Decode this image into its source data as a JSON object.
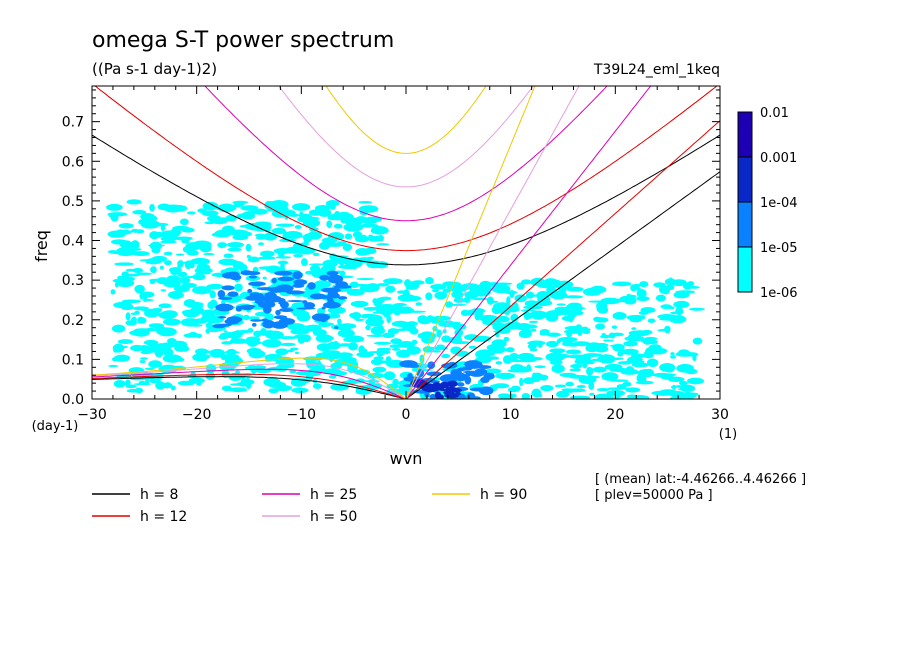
{
  "chart_data": {
    "type": "heatmap",
    "title": "omega S-T power spectrum",
    "subtitle": "((Pa s-1 day-1)2)",
    "run_label": "T39L24_eml_1keq",
    "xlabel": "wvn",
    "ylabel": "freq",
    "x_unit": "(1)",
    "y_unit": "(day-1)",
    "xlim": [
      -30,
      30
    ],
    "ylim": [
      0,
      0.79
    ],
    "x_ticks": [
      -30,
      -20,
      -10,
      0,
      10,
      20,
      30
    ],
    "y_ticks": [
      0.0,
      0.1,
      0.2,
      0.3,
      0.4,
      0.5,
      0.6,
      0.7
    ],
    "colorbar": {
      "levels": [
        "1e-06",
        "1e-05",
        "1e-04",
        "0.001",
        "0.01"
      ],
      "colors": [
        "#00ffff",
        "#0a82ff",
        "#0a28c8",
        "#1e00b4"
      ]
    },
    "field_regions": [
      {
        "level": 1,
        "x": [
          -28,
          -2
        ],
        "y": [
          0.02,
          0.5
        ]
      },
      {
        "level": 1,
        "x": [
          -2,
          28
        ],
        "y": [
          0.0,
          0.3
        ]
      },
      {
        "level": 2,
        "x": [
          -18,
          -6
        ],
        "y": [
          0.18,
          0.32
        ]
      },
      {
        "level": 2,
        "x": [
          0,
          8
        ],
        "y": [
          0.0,
          0.09
        ]
      },
      {
        "level": 3,
        "x": [
          1,
          5
        ],
        "y": [
          0.0,
          0.04
        ]
      }
    ],
    "series": [
      {
        "name": "h = 8",
        "color": "#000000",
        "h": 8
      },
      {
        "name": "h = 12",
        "color": "#e60000",
        "h": 12
      },
      {
        "name": "h = 25",
        "color": "#dc00b4",
        "h": 25
      },
      {
        "name": "h = 50",
        "color": "#e6a0dc",
        "h": 50
      },
      {
        "name": "h = 90",
        "color": "#f0c800",
        "h": 90
      }
    ],
    "annotations": [
      "[ (mean) lat:-4.46266..4.46266 ]",
      "[ plev=50000 Pa ]"
    ]
  }
}
